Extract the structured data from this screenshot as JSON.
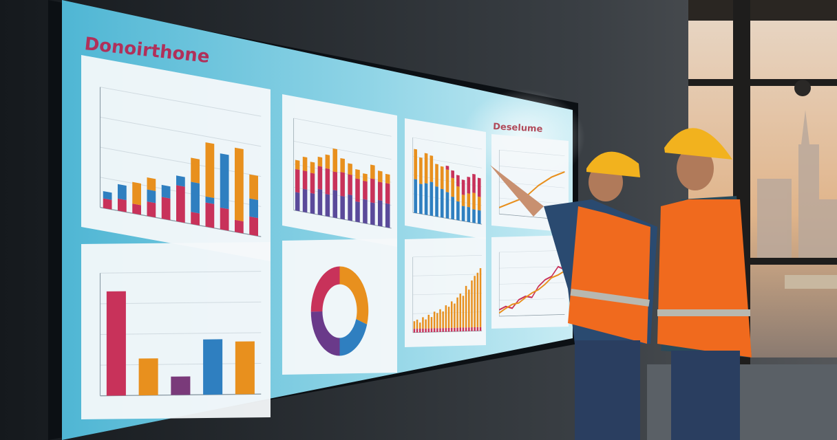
{
  "screen": {
    "title": "Donoirthone",
    "subtitle": "Deselume"
  },
  "panels": [
    {
      "type": "stacked",
      "ylim": [
        0,
        100
      ],
      "series": [
        {
          "color": "#c8325a",
          "values": [
            8,
            10,
            8,
            12,
            18,
            30,
            10,
            20,
            18,
            10,
            15
          ]
        },
        {
          "color": "#2f7fc0",
          "values": [
            6,
            12,
            0,
            10,
            10,
            8,
            25,
            5,
            45,
            0,
            15
          ]
        },
        {
          "color": "#e8901e",
          "values": [
            0,
            0,
            18,
            10,
            0,
            0,
            20,
            45,
            0,
            60,
            20
          ]
        }
      ]
    },
    {
      "type": "stacked",
      "ylim": [
        0,
        100
      ],
      "series": [
        {
          "color": "#5a4a9a",
          "values": [
            20,
            25,
            22,
            28,
            24,
            30,
            25,
            28,
            22,
            26,
            24,
            28,
            26
          ]
        },
        {
          "color": "#c8325a",
          "values": [
            25,
            20,
            22,
            25,
            28,
            20,
            26,
            22,
            25,
            20,
            26,
            20,
            22
          ]
        },
        {
          "color": "#e8901e",
          "values": [
            10,
            15,
            12,
            10,
            15,
            25,
            15,
            12,
            10,
            8,
            15,
            12,
            10
          ]
        }
      ]
    },
    {
      "type": "stacked",
      "ylim": [
        0,
        100
      ],
      "series": [
        {
          "color": "#2f7fc0",
          "values": [
            45,
            40,
            42,
            45,
            40,
            38,
            35,
            30,
            25,
            20,
            20,
            18,
            18
          ]
        },
        {
          "color": "#e8901e",
          "values": [
            40,
            35,
            40,
            35,
            30,
            30,
            30,
            25,
            20,
            15,
            18,
            22,
            18
          ]
        },
        {
          "color": "#c8325a",
          "values": [
            0,
            0,
            0,
            0,
            0,
            0,
            5,
            10,
            15,
            20,
            22,
            25,
            25
          ]
        }
      ]
    },
    {
      "type": "line",
      "ylim": [
        0,
        100
      ],
      "series": [
        {
          "color": "#e8901e",
          "values": [
            10,
            20,
            30,
            50,
            65,
            75
          ]
        }
      ]
    },
    {
      "type": "bar",
      "ylim": [
        0,
        100
      ],
      "values": [
        85,
        30,
        15,
        45,
        43
      ],
      "colors": [
        "#c8325a",
        "#e8901e",
        "#7a3a7a",
        "#2f7fc0",
        "#e8901e"
      ]
    },
    {
      "type": "donut",
      "values": [
        30,
        20,
        25,
        25
      ],
      "colors": [
        "#e8901e",
        "#2f7fc0",
        "#6a3a8a",
        "#c8325a"
      ]
    },
    {
      "type": "stacked",
      "ylim": [
        0,
        100
      ],
      "series": [
        {
          "color": "#c8325a",
          "values": [
            5,
            5,
            5,
            5,
            5,
            5,
            5,
            5,
            5,
            5,
            5,
            5,
            5,
            5,
            5,
            5,
            5,
            5,
            5,
            5,
            5,
            5,
            5,
            5
          ]
        },
        {
          "color": "#e8901e",
          "values": [
            10,
            12,
            8,
            15,
            12,
            18,
            15,
            22,
            20,
            25,
            22,
            30,
            28,
            35,
            32,
            40,
            45,
            42,
            55,
            50,
            62,
            68,
            72,
            78
          ]
        }
      ]
    },
    {
      "type": "line",
      "ylim": [
        0,
        100
      ],
      "series": [
        {
          "color": "#c8325a",
          "values": [
            10,
            15,
            12,
            25,
            30,
            28,
            45,
            55,
            60,
            75,
            70
          ]
        },
        {
          "color": "#e8901e",
          "values": [
            5,
            12,
            18,
            20,
            28,
            35,
            40,
            48,
            58,
            62,
            68
          ]
        }
      ]
    }
  ]
}
